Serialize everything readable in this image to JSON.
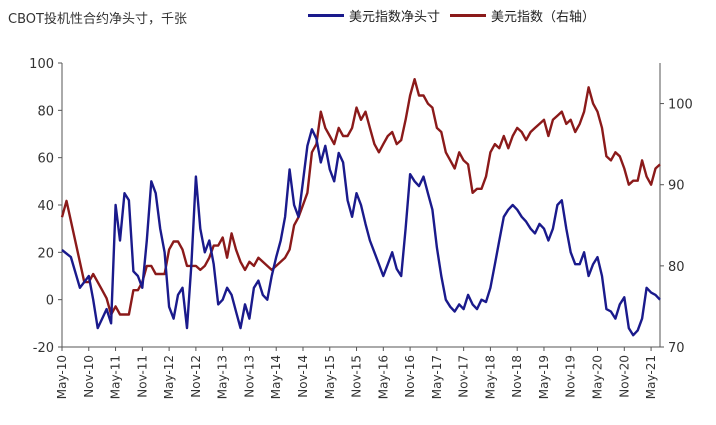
{
  "chart_data": {
    "type": "line",
    "title": "",
    "unit_label": "CBOT投机性合约净头寸，千张",
    "legend_placement": "top",
    "grid": false,
    "colors": {
      "left_series": "#1a1a8c",
      "right_series": "#8b1a1a",
      "axis": "#555555",
      "tick_text": "#333333"
    },
    "y_left": {
      "min": -20,
      "max": 100,
      "ticks": [
        -20,
        0,
        20,
        40,
        60,
        80,
        100
      ]
    },
    "y_right": {
      "min": 70,
      "max": 105,
      "ticks": [
        70,
        80,
        90,
        100
      ]
    },
    "x_axis": {
      "start": "May-10",
      "end": "Jul-21",
      "ticks": [
        "May-10",
        "Nov-10",
        "May-11",
        "Nov-11",
        "May-12",
        "Nov-12",
        "May-13",
        "Nov-13",
        "May-14",
        "Nov-14",
        "May-15",
        "Nov-15",
        "May-16",
        "Nov-16",
        "May-17",
        "Nov-17",
        "May-18",
        "Nov-18",
        "May-19",
        "Nov-19",
        "May-20",
        "Nov-20",
        "May-21"
      ]
    },
    "series": [
      {
        "name": "美元指数净头寸",
        "axis": "left",
        "points": [
          [
            "May-10",
            21
          ],
          [
            "Jul-10",
            18
          ],
          [
            "Sep-10",
            5
          ],
          [
            "Nov-10",
            10
          ],
          [
            "Dec-10",
            0
          ],
          [
            "Jan-11",
            -12
          ],
          [
            "Feb-11",
            -8
          ],
          [
            "Mar-11",
            -4
          ],
          [
            "Apr-11",
            -10
          ],
          [
            "May-11",
            40
          ],
          [
            "Jun-11",
            25
          ],
          [
            "Jul-11",
            45
          ],
          [
            "Aug-11",
            42
          ],
          [
            "Sep-11",
            12
          ],
          [
            "Oct-11",
            10
          ],
          [
            "Nov-11",
            5
          ],
          [
            "Dec-11",
            25
          ],
          [
            "Jan-12",
            50
          ],
          [
            "Feb-12",
            45
          ],
          [
            "Mar-12",
            30
          ],
          [
            "Apr-12",
            20
          ],
          [
            "May-12",
            -3
          ],
          [
            "Jun-12",
            -8
          ],
          [
            "Jul-12",
            2
          ],
          [
            "Aug-12",
            5
          ],
          [
            "Sep-12",
            -12
          ],
          [
            "Oct-12",
            15
          ],
          [
            "Nov-12",
            52
          ],
          [
            "Dec-12",
            30
          ],
          [
            "Jan-13",
            20
          ],
          [
            "Feb-13",
            25
          ],
          [
            "Mar-13",
            15
          ],
          [
            "Apr-13",
            -2
          ],
          [
            "May-13",
            0
          ],
          [
            "Jun-13",
            5
          ],
          [
            "Jul-13",
            2
          ],
          [
            "Aug-13",
            -5
          ],
          [
            "Sep-13",
            -12
          ],
          [
            "Oct-13",
            -2
          ],
          [
            "Nov-13",
            -8
          ],
          [
            "Dec-13",
            5
          ],
          [
            "Jan-14",
            8
          ],
          [
            "Feb-14",
            2
          ],
          [
            "Mar-14",
            0
          ],
          [
            "Apr-14",
            10
          ],
          [
            "May-14",
            18
          ],
          [
            "Jun-14",
            25
          ],
          [
            "Jul-14",
            35
          ],
          [
            "Aug-14",
            55
          ],
          [
            "Sep-14",
            40
          ],
          [
            "Oct-14",
            35
          ],
          [
            "Nov-14",
            50
          ],
          [
            "Dec-14",
            65
          ],
          [
            "Jan-15",
            72
          ],
          [
            "Feb-15",
            68
          ],
          [
            "Mar-15",
            58
          ],
          [
            "Apr-15",
            65
          ],
          [
            "May-15",
            55
          ],
          [
            "Jun-15",
            50
          ],
          [
            "Jul-15",
            62
          ],
          [
            "Aug-15",
            58
          ],
          [
            "Sep-15",
            42
          ],
          [
            "Oct-15",
            35
          ],
          [
            "Nov-15",
            45
          ],
          [
            "Dec-15",
            40
          ],
          [
            "Jan-16",
            32
          ],
          [
            "Feb-16",
            25
          ],
          [
            "Mar-16",
            20
          ],
          [
            "Apr-16",
            15
          ],
          [
            "May-16",
            10
          ],
          [
            "Jun-16",
            15
          ],
          [
            "Jul-16",
            20
          ],
          [
            "Aug-16",
            13
          ],
          [
            "Sep-16",
            10
          ],
          [
            "Oct-16",
            30
          ],
          [
            "Nov-16",
            53
          ],
          [
            "Dec-16",
            50
          ],
          [
            "Jan-17",
            48
          ],
          [
            "Feb-17",
            52
          ],
          [
            "Mar-17",
            45
          ],
          [
            "Apr-17",
            38
          ],
          [
            "May-17",
            22
          ],
          [
            "Jun-17",
            10
          ],
          [
            "Jul-17",
            0
          ],
          [
            "Aug-17",
            -3
          ],
          [
            "Sep-17",
            -5
          ],
          [
            "Oct-17",
            -2
          ],
          [
            "Nov-17",
            -4
          ],
          [
            "Dec-17",
            2
          ],
          [
            "Jan-18",
            -2
          ],
          [
            "Feb-18",
            -4
          ],
          [
            "Mar-18",
            0
          ],
          [
            "Apr-18",
            -1
          ],
          [
            "May-18",
            5
          ],
          [
            "Jun-18",
            15
          ],
          [
            "Jul-18",
            25
          ],
          [
            "Aug-18",
            35
          ],
          [
            "Sep-18",
            38
          ],
          [
            "Oct-18",
            40
          ],
          [
            "Nov-18",
            38
          ],
          [
            "Dec-18",
            35
          ],
          [
            "Jan-19",
            33
          ],
          [
            "Feb-19",
            30
          ],
          [
            "Mar-19",
            28
          ],
          [
            "Apr-19",
            32
          ],
          [
            "May-19",
            30
          ],
          [
            "Jun-19",
            25
          ],
          [
            "Jul-19",
            30
          ],
          [
            "Aug-19",
            40
          ],
          [
            "Sep-19",
            42
          ],
          [
            "Oct-19",
            30
          ],
          [
            "Nov-19",
            20
          ],
          [
            "Dec-19",
            15
          ],
          [
            "Jan-20",
            15
          ],
          [
            "Feb-20",
            20
          ],
          [
            "Mar-20",
            10
          ],
          [
            "Apr-20",
            15
          ],
          [
            "May-20",
            18
          ],
          [
            "Jun-20",
            10
          ],
          [
            "Jul-20",
            -4
          ],
          [
            "Aug-20",
            -5
          ],
          [
            "Sep-20",
            -8
          ],
          [
            "Oct-20",
            -2
          ],
          [
            "Nov-20",
            1
          ],
          [
            "Dec-20",
            -12
          ],
          [
            "Jan-21",
            -15
          ],
          [
            "Feb-21",
            -13
          ],
          [
            "Mar-21",
            -8
          ],
          [
            "Apr-21",
            5
          ],
          [
            "May-21",
            3
          ],
          [
            "Jun-21",
            2
          ],
          [
            "Jul-21",
            0
          ]
        ]
      },
      {
        "name": "美元指数（右轴）",
        "axis": "right",
        "points": [
          [
            "May-10",
            86
          ],
          [
            "Jun-10",
            88
          ],
          [
            "Aug-10",
            83
          ],
          [
            "Oct-10",
            78
          ],
          [
            "Nov-10",
            78
          ],
          [
            "Dec-10",
            79
          ],
          [
            "Jan-11",
            78
          ],
          [
            "Feb-11",
            77
          ],
          [
            "Mar-11",
            76
          ],
          [
            "Apr-11",
            74
          ],
          [
            "May-11",
            75
          ],
          [
            "Jun-11",
            74
          ],
          [
            "Jul-11",
            74
          ],
          [
            "Aug-11",
            74
          ],
          [
            "Sep-11",
            77
          ],
          [
            "Oct-11",
            77
          ],
          [
            "Nov-11",
            78
          ],
          [
            "Dec-11",
            80
          ],
          [
            "Jan-12",
            80
          ],
          [
            "Feb-12",
            79
          ],
          [
            "Mar-12",
            79
          ],
          [
            "Apr-12",
            79
          ],
          [
            "May-12",
            82
          ],
          [
            "Jun-12",
            83
          ],
          [
            "Jul-12",
            83
          ],
          [
            "Aug-12",
            82
          ],
          [
            "Sep-12",
            80
          ],
          [
            "Oct-12",
            80
          ],
          [
            "Nov-12",
            80
          ],
          [
            "Dec-12",
            79.5
          ],
          [
            "Jan-13",
            80
          ],
          [
            "Feb-13",
            81
          ],
          [
            "Mar-13",
            82.5
          ],
          [
            "Apr-13",
            82.5
          ],
          [
            "May-13",
            83.5
          ],
          [
            "Jun-13",
            81
          ],
          [
            "Jul-13",
            84
          ],
          [
            "Aug-13",
            82
          ],
          [
            "Sep-13",
            80.5
          ],
          [
            "Oct-13",
            79.5
          ],
          [
            "Nov-13",
            80.5
          ],
          [
            "Dec-13",
            80
          ],
          [
            "Jan-14",
            81
          ],
          [
            "Feb-14",
            80.5
          ],
          [
            "Mar-14",
            80
          ],
          [
            "Apr-14",
            79.5
          ],
          [
            "May-14",
            80
          ],
          [
            "Jun-14",
            80.5
          ],
          [
            "Jul-14",
            81
          ],
          [
            "Aug-14",
            82
          ],
          [
            "Sep-14",
            85
          ],
          [
            "Oct-14",
            86
          ],
          [
            "Nov-14",
            87.5
          ],
          [
            "Dec-14",
            89
          ],
          [
            "Jan-15",
            94
          ],
          [
            "Feb-15",
            95
          ],
          [
            "Mar-15",
            99
          ],
          [
            "Apr-15",
            97
          ],
          [
            "May-15",
            96
          ],
          [
            "Jun-15",
            95
          ],
          [
            "Jul-15",
            97
          ],
          [
            "Aug-15",
            96
          ],
          [
            "Sep-15",
            96
          ],
          [
            "Oct-15",
            97
          ],
          [
            "Nov-15",
            99.5
          ],
          [
            "Dec-15",
            98
          ],
          [
            "Jan-16",
            99
          ],
          [
            "Feb-16",
            97
          ],
          [
            "Mar-16",
            95
          ],
          [
            "Apr-16",
            94
          ],
          [
            "May-16",
            95
          ],
          [
            "Jun-16",
            96
          ],
          [
            "Jul-16",
            96.5
          ],
          [
            "Aug-16",
            95
          ],
          [
            "Sep-16",
            95.5
          ],
          [
            "Oct-16",
            98
          ],
          [
            "Nov-16",
            101
          ],
          [
            "Dec-16",
            103
          ],
          [
            "Jan-17",
            101
          ],
          [
            "Feb-17",
            101
          ],
          [
            "Mar-17",
            100
          ],
          [
            "Apr-17",
            99.5
          ],
          [
            "May-17",
            97
          ],
          [
            "Jun-17",
            96.5
          ],
          [
            "Jul-17",
            94
          ],
          [
            "Aug-17",
            93
          ],
          [
            "Sep-17",
            92
          ],
          [
            "Oct-17",
            94
          ],
          [
            "Nov-17",
            93
          ],
          [
            "Dec-17",
            92.5
          ],
          [
            "Jan-18",
            89
          ],
          [
            "Feb-18",
            89.5
          ],
          [
            "Mar-18",
            89.5
          ],
          [
            "Apr-18",
            91
          ],
          [
            "May-18",
            94
          ],
          [
            "Jun-18",
            95
          ],
          [
            "Jul-18",
            94.5
          ],
          [
            "Aug-18",
            96
          ],
          [
            "Sep-18",
            94.5
          ],
          [
            "Oct-18",
            96
          ],
          [
            "Nov-18",
            97
          ],
          [
            "Dec-18",
            96.5
          ],
          [
            "Jan-19",
            95.5
          ],
          [
            "Feb-19",
            96.5
          ],
          [
            "Mar-19",
            97
          ],
          [
            "Apr-19",
            97.5
          ],
          [
            "May-19",
            98
          ],
          [
            "Jun-19",
            96
          ],
          [
            "Jul-19",
            98
          ],
          [
            "Aug-19",
            98.5
          ],
          [
            "Sep-19",
            99
          ],
          [
            "Oct-19",
            97.5
          ],
          [
            "Nov-19",
            98
          ],
          [
            "Dec-19",
            96.5
          ],
          [
            "Jan-20",
            97.5
          ],
          [
            "Feb-20",
            99
          ],
          [
            "Mar-20",
            102
          ],
          [
            "Apr-20",
            100
          ],
          [
            "May-20",
            99
          ],
          [
            "Jun-20",
            97
          ],
          [
            "Jul-20",
            93.5
          ],
          [
            "Aug-20",
            93
          ],
          [
            "Sep-20",
            94
          ],
          [
            "Oct-20",
            93.5
          ],
          [
            "Nov-20",
            92
          ],
          [
            "Dec-20",
            90
          ],
          [
            "Jan-21",
            90.5
          ],
          [
            "Feb-21",
            90.5
          ],
          [
            "Mar-21",
            93
          ],
          [
            "Apr-21",
            91
          ],
          [
            "May-21",
            90
          ],
          [
            "Jun-21",
            92
          ],
          [
            "Jul-21",
            92.5
          ]
        ]
      }
    ]
  }
}
